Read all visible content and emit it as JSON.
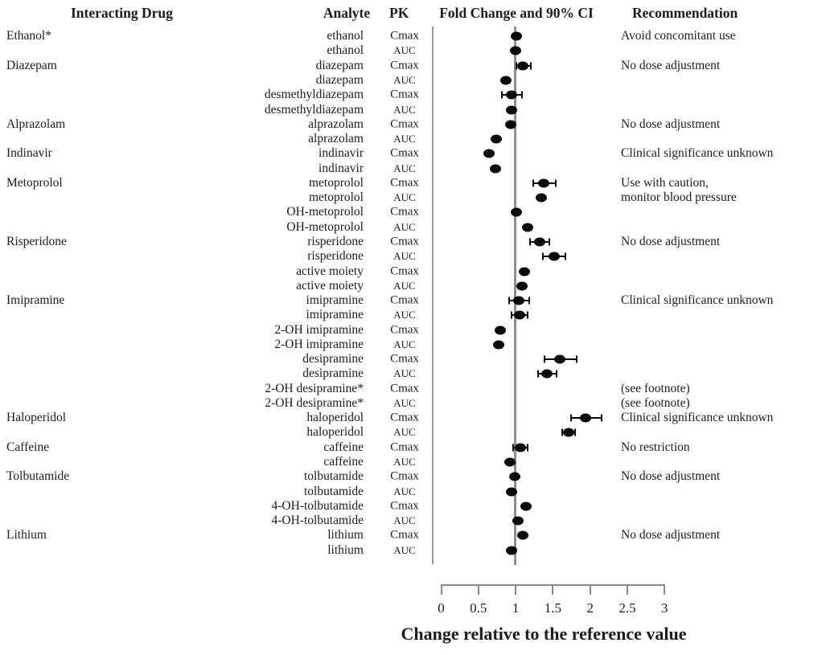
{
  "header": {
    "interacting_drug": "Interacting Drug",
    "analyte": "Analyte",
    "pk": "PK",
    "fold_change": "Fold Change and 90% CI",
    "recommendation": "Recommendation"
  },
  "colors": {
    "dot": "#0a0a0a",
    "axis_line": "#8a8a8a",
    "reference_line": "#8e8e8e",
    "text": "#1c1c1c"
  },
  "chart_data": {
    "type": "scatter",
    "subtype": "forest-plot",
    "title": "Fold Change and 90% CI",
    "xlabel": "Change relative to the reference value",
    "xlim": [
      0,
      3
    ],
    "xticks": [
      "0",
      "0.5",
      "1",
      "1.5",
      "2",
      "2.5",
      "3"
    ],
    "reference_line": 1,
    "grid": false,
    "rows": [
      {
        "drug": "Ethanol*",
        "analyte": "ethanol",
        "pk": "Cmax",
        "value": 1.01,
        "ci_low": 0.97,
        "ci_high": 1.05,
        "recommendation": "Avoid concomitant use"
      },
      {
        "drug": "",
        "analyte": "ethanol",
        "pk": "AUC",
        "value": 1.0,
        "ci_low": 0.96,
        "ci_high": 1.04,
        "recommendation": ""
      },
      {
        "drug": "Diazepam",
        "analyte": "diazepam",
        "pk": "Cmax",
        "value": 1.1,
        "ci_low": 1.01,
        "ci_high": 1.2,
        "recommendation": "No dose adjustment"
      },
      {
        "drug": "",
        "analyte": "diazepam",
        "pk": "AUC",
        "value": 0.87,
        "ci_low": 0.83,
        "ci_high": 0.91,
        "recommendation": ""
      },
      {
        "drug": "",
        "analyte": "desmethyldiazepam",
        "pk": "Cmax",
        "value": 0.94,
        "ci_low": 0.82,
        "ci_high": 1.08,
        "recommendation": ""
      },
      {
        "drug": "",
        "analyte": "desmethyldiazepam",
        "pk": "AUC",
        "value": 0.95,
        "ci_low": 0.91,
        "ci_high": 0.99,
        "recommendation": ""
      },
      {
        "drug": "Alprazolam",
        "analyte": "alprazolam",
        "pk": "Cmax",
        "value": 0.93,
        "ci_low": 0.89,
        "ci_high": 0.97,
        "recommendation": "No dose adjustment"
      },
      {
        "drug": "",
        "analyte": "alprazolam",
        "pk": "AUC",
        "value": 0.74,
        "ci_low": 0.7,
        "ci_high": 0.78,
        "recommendation": ""
      },
      {
        "drug": "Indinavir",
        "analyte": "indinavir",
        "pk": "Cmax",
        "value": 0.64,
        "ci_low": 0.6,
        "ci_high": 0.68,
        "recommendation": "Clinical significance unknown"
      },
      {
        "drug": "",
        "analyte": "indinavir",
        "pk": "AUC",
        "value": 0.73,
        "ci_low": 0.69,
        "ci_high": 0.77,
        "recommendation": ""
      },
      {
        "drug": "Metoprolol",
        "analyte": "metoprolol",
        "pk": "Cmax",
        "value": 1.38,
        "ci_low": 1.24,
        "ci_high": 1.54,
        "recommendation": "Use with caution,"
      },
      {
        "drug": "",
        "analyte": "metoprolol",
        "pk": "AUC",
        "value": 1.34,
        "ci_low": 1.28,
        "ci_high": 1.4,
        "recommendation": "monitor blood pressure"
      },
      {
        "drug": "",
        "analyte": "OH-metoprolol",
        "pk": "Cmax",
        "value": 1.01,
        "ci_low": 0.97,
        "ci_high": 1.05,
        "recommendation": ""
      },
      {
        "drug": "",
        "analyte": "OH-metoprolol",
        "pk": "AUC",
        "value": 1.16,
        "ci_low": 1.11,
        "ci_high": 1.21,
        "recommendation": ""
      },
      {
        "drug": "Risperidone",
        "analyte": "risperidone",
        "pk": "Cmax",
        "value": 1.32,
        "ci_low": 1.19,
        "ci_high": 1.45,
        "recommendation": "No dose adjustment"
      },
      {
        "drug": "",
        "analyte": "risperidone",
        "pk": "AUC",
        "value": 1.52,
        "ci_low": 1.37,
        "ci_high": 1.67,
        "recommendation": ""
      },
      {
        "drug": "",
        "analyte": "active moiety",
        "pk": "Cmax",
        "value": 1.12,
        "ci_low": 1.07,
        "ci_high": 1.17,
        "recommendation": ""
      },
      {
        "drug": "",
        "analyte": "active moiety",
        "pk": "AUC",
        "value": 1.08,
        "ci_low": 1.03,
        "ci_high": 1.13,
        "recommendation": ""
      },
      {
        "drug": "Imipramine",
        "analyte": "imipramine",
        "pk": "Cmax",
        "value": 1.04,
        "ci_low": 0.91,
        "ci_high": 1.18,
        "recommendation": "Clinical significance unknown"
      },
      {
        "drug": "",
        "analyte": "imipramine",
        "pk": "AUC",
        "value": 1.05,
        "ci_low": 0.95,
        "ci_high": 1.16,
        "recommendation": ""
      },
      {
        "drug": "",
        "analyte": "2-OH imipramine",
        "pk": "Cmax",
        "value": 0.79,
        "ci_low": 0.74,
        "ci_high": 0.84,
        "recommendation": ""
      },
      {
        "drug": "",
        "analyte": "2-OH imipramine",
        "pk": "AUC",
        "value": 0.77,
        "ci_low": 0.72,
        "ci_high": 0.82,
        "recommendation": ""
      },
      {
        "drug": "",
        "analyte": "desipramine",
        "pk": "Cmax",
        "value": 1.59,
        "ci_low": 1.39,
        "ci_high": 1.82,
        "recommendation": ""
      },
      {
        "drug": "",
        "analyte": "desipramine",
        "pk": "AUC",
        "value": 1.42,
        "ci_low": 1.3,
        "ci_high": 1.55,
        "recommendation": ""
      },
      {
        "drug": "",
        "analyte": "2-OH desipramine*",
        "pk": "Cmax",
        "value": null,
        "ci_low": null,
        "ci_high": null,
        "recommendation": "(see footnote)"
      },
      {
        "drug": "",
        "analyte": "2-OH desipramine*",
        "pk": "AUC",
        "value": null,
        "ci_low": null,
        "ci_high": null,
        "recommendation": "(see footnote)"
      },
      {
        "drug": "Haloperidol",
        "analyte": "haloperidol",
        "pk": "Cmax",
        "value": 1.94,
        "ci_low": 1.74,
        "ci_high": 2.15,
        "recommendation": "Clinical significance unknown"
      },
      {
        "drug": "",
        "analyte": "haloperidol",
        "pk": "AUC",
        "value": 1.71,
        "ci_low": 1.62,
        "ci_high": 1.8,
        "recommendation": ""
      },
      {
        "drug": "Caffeine",
        "analyte": "caffeine",
        "pk": "Cmax",
        "value": 1.06,
        "ci_low": 0.97,
        "ci_high": 1.16,
        "recommendation": "No restriction"
      },
      {
        "drug": "",
        "analyte": "caffeine",
        "pk": "AUC",
        "value": 0.92,
        "ci_low": 0.88,
        "ci_high": 0.96,
        "recommendation": ""
      },
      {
        "drug": "Tolbutamide",
        "analyte": "tolbutamide",
        "pk": "Cmax",
        "value": 0.99,
        "ci_low": 0.95,
        "ci_high": 1.03,
        "recommendation": "No dose adjustment"
      },
      {
        "drug": "",
        "analyte": "tolbutamide",
        "pk": "AUC",
        "value": 0.95,
        "ci_low": 0.91,
        "ci_high": 0.99,
        "recommendation": ""
      },
      {
        "drug": "",
        "analyte": "4-OH-tolbutamide",
        "pk": "Cmax",
        "value": 1.14,
        "ci_low": 1.09,
        "ci_high": 1.19,
        "recommendation": ""
      },
      {
        "drug": "",
        "analyte": "4-OH-tolbutamide",
        "pk": "AUC",
        "value": 1.03,
        "ci_low": 0.99,
        "ci_high": 1.07,
        "recommendation": ""
      },
      {
        "drug": "Lithium",
        "analyte": "lithium",
        "pk": "Cmax",
        "value": 1.1,
        "ci_low": 1.05,
        "ci_high": 1.15,
        "recommendation": "No dose adjustment"
      },
      {
        "drug": "",
        "analyte": "lithium",
        "pk": "AUC",
        "value": 0.95,
        "ci_low": 0.9,
        "ci_high": 1.0,
        "recommendation": ""
      }
    ]
  }
}
